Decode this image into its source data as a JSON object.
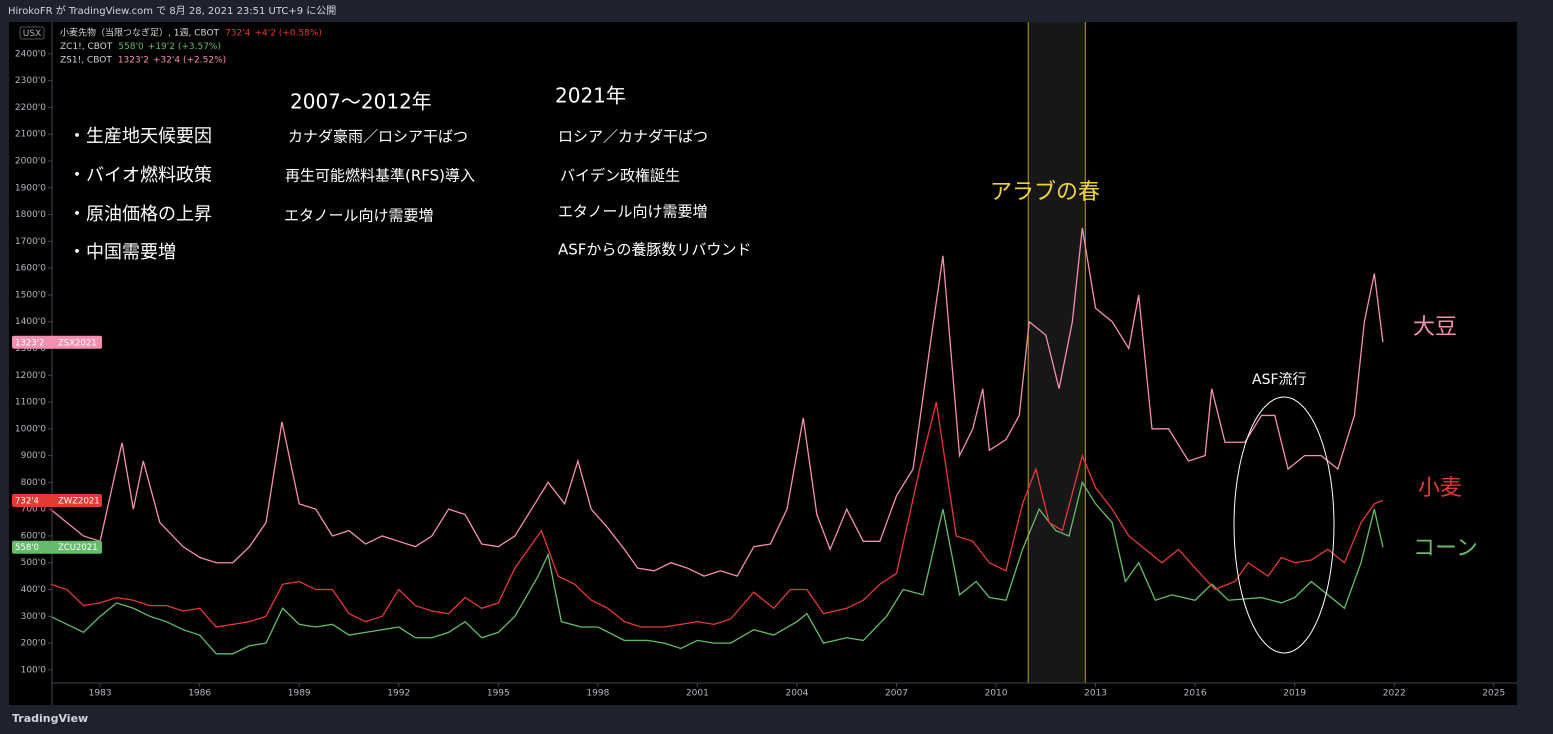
{
  "header": {
    "published": "HirokoFR が TradingView.com で 8月 28, 2021 23:51 UTC+9 に公開",
    "currency": "USX",
    "brand": "TradingView"
  },
  "notes": {
    "header_2007": "2007〜2012年",
    "header_2021": "2021年",
    "factors": [
      "・生産地天候要因",
      "・バイオ燃料政策",
      "・原油価格の上昇",
      "・中国需要増"
    ],
    "col_2007": [
      "カナダ豪雨／ロシア干ばつ",
      "再生可能燃料基準(RFS)導入",
      "エタノール向け需要増"
    ],
    "col_2021": [
      "ロシア／カナダ干ばつ",
      "バイデン政権誕生",
      "エタノール向け需要増",
      "ASFからの養豚数リバウンド"
    ],
    "asf": "ASF流行"
  },
  "chart_data": {
    "type": "line",
    "xlim": [
      1981.55,
      2025.7
    ],
    "xticks": [
      1983,
      1986,
      1989,
      1992,
      1995,
      1998,
      2001,
      2004,
      2007,
      2010,
      2013,
      2016,
      2019,
      2022,
      2025
    ],
    "ylim": [
      51,
      2519
    ],
    "yticks": [
      {
        "value": 100,
        "label": "100'0"
      },
      {
        "value": 200,
        "label": "200'0"
      },
      {
        "value": 300,
        "label": "300'0"
      },
      {
        "value": 400,
        "label": "400'0"
      },
      {
        "value": 500,
        "label": "500'0"
      },
      {
        "value": 600,
        "label": "600'0"
      },
      {
        "value": 700,
        "label": "700'0"
      },
      {
        "value": 800,
        "label": "800'0"
      },
      {
        "value": 900,
        "label": "900'0"
      },
      {
        "value": 1000,
        "label": "1000'0"
      },
      {
        "value": 1100,
        "label": "1100'0"
      },
      {
        "value": 1200,
        "label": "1200'0"
      },
      {
        "value": 1300,
        "label": "1300'0"
      },
      {
        "value": 1400,
        "label": "1400'0"
      },
      {
        "value": 1500,
        "label": "1500'0"
      },
      {
        "value": 1600,
        "label": "1600'0"
      },
      {
        "value": 1700,
        "label": "1700'0"
      },
      {
        "value": 1800,
        "label": "1800'0"
      },
      {
        "value": 1900,
        "label": "1900'0"
      },
      {
        "value": 2000,
        "label": "2000'0"
      },
      {
        "value": 2100,
        "label": "2100'0"
      },
      {
        "value": 2200,
        "label": "2200'0"
      },
      {
        "value": 2300,
        "label": "2300'0"
      },
      {
        "value": 2400,
        "label": "2400'0"
      }
    ],
    "grid": false,
    "shaded_period": {
      "label": "アラブの春",
      "range": [
        2010.97,
        2012.69
      ]
    },
    "series": [
      {
        "name": "小麦先物（当限つなぎ足）, 1週, CBOT",
        "color": "#e53935",
        "side_label": "小麦",
        "last_label": "732'4",
        "change": "+4'2 (+0.58%)",
        "tag": "ZWZ2021",
        "x": [
          1981.5,
          1982,
          1982.5,
          1983,
          1983.5,
          1984,
          1984.5,
          1985,
          1985.5,
          1986,
          1986.5,
          1987,
          1987.5,
          1988,
          1988.5,
          1989,
          1989.5,
          1990,
          1990.5,
          1991,
          1991.5,
          1992,
          1992.5,
          1993,
          1993.5,
          1994,
          1994.5,
          1995,
          1995.5,
          1996.3,
          1996.8,
          1997.3,
          1997.8,
          1998.3,
          1998.8,
          1999.3,
          2000,
          2000.5,
          2001,
          2001.5,
          2002,
          2002.7,
          2003.3,
          2003.8,
          2004.3,
          2004.8,
          2005.5,
          2006,
          2006.5,
          2007,
          2007.7,
          2008.2,
          2008.8,
          2009.3,
          2009.8,
          2010.3,
          2010.8,
          2011.2,
          2011.6,
          2012,
          2012.6,
          2013,
          2013.5,
          2014,
          2014.5,
          2015,
          2015.5,
          2016,
          2016.6,
          2017.2,
          2017.6,
          2018.2,
          2018.6,
          2019,
          2019.5,
          2020,
          2020.5,
          2021,
          2021.4,
          2021.66
        ],
        "values": [
          420,
          400,
          340,
          350,
          370,
          360,
          340,
          340,
          320,
          330,
          260,
          270,
          280,
          300,
          420,
          430,
          400,
          400,
          310,
          280,
          300,
          400,
          340,
          320,
          310,
          370,
          330,
          350,
          480,
          620,
          450,
          420,
          360,
          330,
          280,
          260,
          260,
          270,
          280,
          270,
          290,
          390,
          330,
          400,
          400,
          310,
          330,
          360,
          420,
          460,
          850,
          1100,
          600,
          580,
          500,
          470,
          720,
          850,
          650,
          620,
          900,
          780,
          700,
          600,
          550,
          500,
          550,
          480,
          400,
          430,
          500,
          450,
          520,
          500,
          510,
          550,
          500,
          650,
          720,
          732.5
        ]
      },
      {
        "name": "ZC1!, CBOT",
        "color": "#66bb6a",
        "side_label": "コーン",
        "last_label": "558'0",
        "change": "+19'2 (+3.57%)",
        "tag": "ZCU2021",
        "x": [
          1981.5,
          1982,
          1982.5,
          1983,
          1983.5,
          1984,
          1984.5,
          1985,
          1985.5,
          1986,
          1986.5,
          1987,
          1987.5,
          1988,
          1988.5,
          1989,
          1989.5,
          1990,
          1990.5,
          1991,
          1991.5,
          1992,
          1992.5,
          1993,
          1993.5,
          1994,
          1994.5,
          1995,
          1995.5,
          1996.2,
          1996.5,
          1996.9,
          1997.5,
          1998,
          1998.8,
          1999.5,
          2000,
          2000.5,
          2001,
          2001.5,
          2002,
          2002.7,
          2003.3,
          2004,
          2004.3,
          2004.8,
          2005.5,
          2006,
          2006.7,
          2007.2,
          2007.8,
          2008.4,
          2008.9,
          2009.4,
          2009.8,
          2010.3,
          2010.8,
          2011.3,
          2011.8,
          2012.2,
          2012.6,
          2013,
          2013.5,
          2013.9,
          2014.3,
          2014.8,
          2015.3,
          2016,
          2016.5,
          2017,
          2018,
          2018.6,
          2019,
          2019.5,
          2020,
          2020.5,
          2021,
          2021.4,
          2021.66
        ],
        "values": [
          300,
          270,
          240,
          300,
          350,
          330,
          300,
          280,
          250,
          230,
          160,
          160,
          190,
          200,
          330,
          270,
          260,
          270,
          230,
          240,
          250,
          260,
          220,
          220,
          240,
          280,
          220,
          240,
          300,
          450,
          530,
          280,
          260,
          260,
          210,
          210,
          200,
          180,
          210,
          200,
          200,
          250,
          230,
          280,
          310,
          200,
          220,
          210,
          300,
          400,
          380,
          700,
          380,
          430,
          370,
          360,
          550,
          700,
          620,
          600,
          800,
          720,
          650,
          430,
          500,
          360,
          380,
          360,
          420,
          360,
          370,
          350,
          370,
          430,
          380,
          330,
          500,
          700,
          558
        ]
      },
      {
        "name": "ZS1!, CBOT",
        "color": "#f48fb1",
        "side_label": "大豆",
        "last_label": "1323'2",
        "change": "+32'4 (+2.52%)",
        "tag": "ZSX2021",
        "x": [
          1981.5,
          1982,
          1982.5,
          1983,
          1983.66,
          1984,
          1984.3,
          1984.8,
          1985.5,
          1986,
          1986.5,
          1987,
          1987.5,
          1988,
          1988.48,
          1989,
          1989.5,
          1990,
          1990.5,
          1991,
          1991.5,
          1992,
          1992.5,
          1993,
          1993.5,
          1994,
          1994.5,
          1995,
          1995.5,
          1996,
          1996.5,
          1997,
          1997.4,
          1997.8,
          1998.3,
          1998.8,
          1999.2,
          1999.7,
          2000.2,
          2000.7,
          2001.2,
          2001.7,
          2002.2,
          2002.7,
          2003.2,
          2003.7,
          2004.19,
          2004.6,
          2005,
          2005.5,
          2006,
          2006.5,
          2007,
          2007.5,
          2008,
          2008.4,
          2008.9,
          2009.3,
          2009.6,
          2009.8,
          2010.3,
          2010.7,
          2011,
          2011.5,
          2011.9,
          2012.3,
          2012.6,
          2013,
          2013.5,
          2014,
          2014.3,
          2014.7,
          2015.2,
          2015.8,
          2016.3,
          2016.5,
          2016.9,
          2017.5,
          2018,
          2018.4,
          2018.8,
          2019.3,
          2019.8,
          2020.3,
          2020.8,
          2021.1,
          2021.4,
          2021.66
        ],
        "values": [
          700,
          650,
          600,
          580,
          948,
          700,
          880,
          650,
          560,
          520,
          500,
          500,
          560,
          650,
          1026,
          720,
          700,
          600,
          620,
          570,
          600,
          580,
          560,
          600,
          700,
          680,
          570,
          560,
          600,
          700,
          800,
          720,
          880,
          700,
          630,
          550,
          480,
          470,
          500,
          480,
          450,
          470,
          450,
          560,
          570,
          700,
          1041,
          680,
          550,
          700,
          580,
          580,
          750,
          850,
          1300,
          1646,
          900,
          1000,
          1150,
          920,
          960,
          1050,
          1400,
          1350,
          1150,
          1400,
          1750,
          1450,
          1400,
          1300,
          1500,
          1000,
          1000,
          880,
          900,
          1150,
          950,
          950,
          1050,
          1050,
          850,
          900,
          900,
          850,
          1050,
          1400,
          1580,
          1323.25
        ]
      }
    ]
  }
}
